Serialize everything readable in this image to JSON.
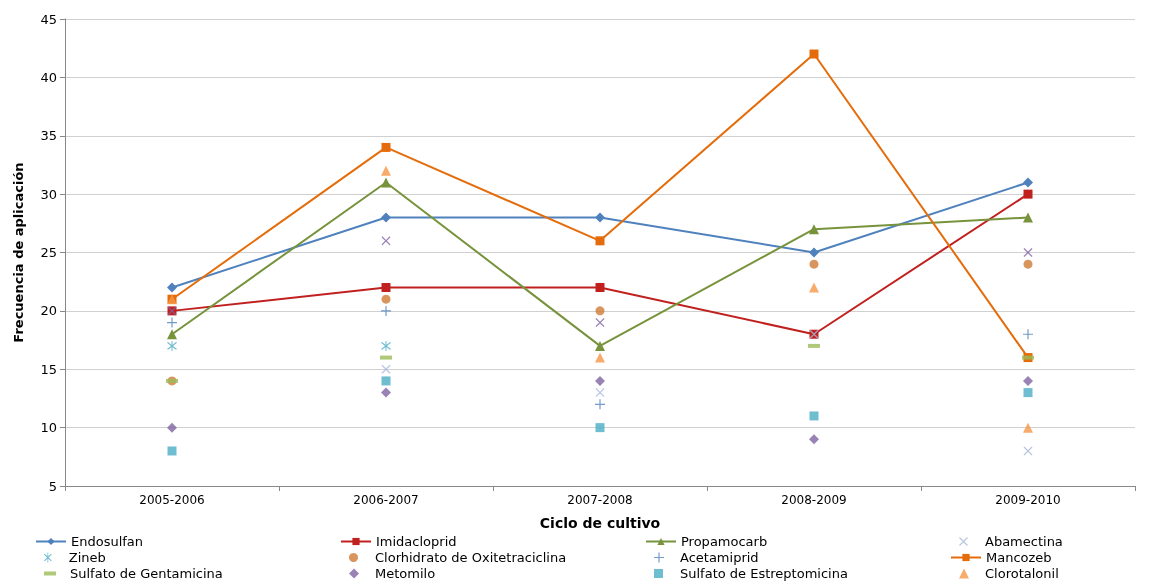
{
  "chart_data": {
    "type": "line",
    "xlabel": "Ciclo de cultivo",
    "ylabel": "Frecuencia de aplicación",
    "categories": [
      "2005-2006",
      "2006-2007",
      "2007-2008",
      "2008-2009",
      "2009-2010"
    ],
    "ylim": [
      5,
      45
    ],
    "yticks": [
      5,
      10,
      15,
      20,
      25,
      30,
      35,
      40,
      45
    ],
    "grid": "y",
    "legend": "bottom",
    "series": [
      {
        "name": "Endosulfan",
        "type": "line",
        "marker": "diamond",
        "color": "#4f81bd",
        "values": [
          22,
          28,
          28,
          25,
          31
        ]
      },
      {
        "name": "Imidacloprid",
        "type": "line",
        "marker": "square",
        "color": "#c0211f",
        "values": [
          20,
          22,
          22,
          18,
          30
        ]
      },
      {
        "name": "Propamocarb",
        "type": "line",
        "marker": "triangle",
        "color": "#77933c",
        "values": [
          18,
          31,
          17,
          27,
          28
        ]
      },
      {
        "name": "Abamectina",
        "type": "scatter",
        "marker": "cross",
        "color": "#aab9d9",
        "values": [
          null,
          15,
          13,
          18,
          8
        ]
      },
      {
        "name": "Zineb",
        "type": "scatter",
        "marker": "asterisk",
        "color": "#4bacc6",
        "values": [
          17,
          17,
          null,
          null,
          null
        ]
      },
      {
        "name": "Clorhidrato de Oxitetraciclina",
        "type": "scatter",
        "marker": "circle",
        "color": "#d07b36",
        "values": [
          14,
          21,
          20,
          24,
          24
        ]
      },
      {
        "name": "Acetamiprid",
        "type": "scatter",
        "marker": "plus",
        "color": "#4f81bd",
        "values": [
          19,
          20,
          12,
          null,
          18
        ]
      },
      {
        "name": "Mancozeb",
        "type": "line",
        "marker": "square",
        "color": "#e46c0a",
        "values": [
          21,
          34,
          26,
          42,
          16
        ]
      },
      {
        "name": "Sulfato de Gentamicina",
        "type": "scatter",
        "color": "#9bbb59",
        "values": [
          14,
          16,
          null,
          17,
          16
        ]
      },
      {
        "name": "Metomilo",
        "type": "scatter",
        "marker": "diamond",
        "color": "#8064a2",
        "values": [
          10,
          13,
          14,
          9,
          14
        ]
      },
      {
        "name": "Sulfato de Estreptomicina",
        "type": "scatter",
        "marker": "square",
        "color": "#4bacc6",
        "values": [
          8,
          14,
          10,
          11,
          13
        ]
      },
      {
        "name": "Clorotalonil",
        "type": "scatter",
        "marker": "triangle",
        "color": "#f79646",
        "values": [
          21,
          32,
          16,
          22,
          10
        ]
      },
      {
        "type": "scatter",
        "marker": "cross",
        "color": "#7f64a2",
        "values": [
          20,
          26,
          19,
          null,
          25
        ]
      }
    ]
  }
}
